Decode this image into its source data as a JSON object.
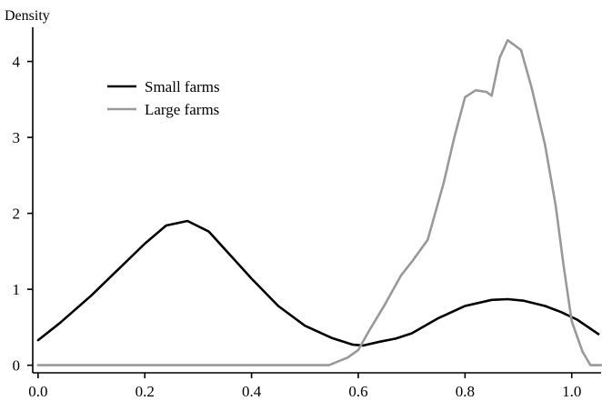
{
  "chart_data": {
    "type": "line",
    "title": "",
    "ylabel": "Density",
    "xlabel": "",
    "xlim": [
      -0.01,
      1.055
    ],
    "ylim": [
      -0.1,
      4.45
    ],
    "grid": false,
    "legend_position": "top-left",
    "x_ticks": [
      "0.0",
      "0.2",
      "0.4",
      "0.6",
      "0.8",
      "1.0"
    ],
    "y_ticks": [
      "0",
      "1",
      "2",
      "3",
      "4"
    ],
    "series": [
      {
        "name": "Small farms",
        "color": "#000000",
        "x": [
          0.0,
          0.04,
          0.1,
          0.15,
          0.2,
          0.24,
          0.28,
          0.32,
          0.36,
          0.4,
          0.45,
          0.5,
          0.55,
          0.59,
          0.61,
          0.64,
          0.67,
          0.7,
          0.75,
          0.8,
          0.85,
          0.88,
          0.91,
          0.95,
          0.98,
          1.01,
          1.05
        ],
        "y": [
          0.33,
          0.55,
          0.92,
          1.26,
          1.6,
          1.84,
          1.9,
          1.76,
          1.45,
          1.14,
          0.78,
          0.52,
          0.36,
          0.27,
          0.26,
          0.31,
          0.35,
          0.42,
          0.62,
          0.78,
          0.86,
          0.87,
          0.85,
          0.78,
          0.7,
          0.6,
          0.41
        ]
      },
      {
        "name": "Large farms",
        "color": "#999999",
        "x": [
          0.0,
          0.545,
          0.58,
          0.6,
          0.62,
          0.65,
          0.68,
          0.7,
          0.73,
          0.76,
          0.78,
          0.8,
          0.82,
          0.84,
          0.85,
          0.865,
          0.88,
          0.905,
          0.925,
          0.95,
          0.97,
          0.985,
          1.0,
          1.02,
          1.035,
          1.055
        ],
        "y": [
          0.0,
          0.0,
          0.1,
          0.2,
          0.45,
          0.8,
          1.18,
          1.36,
          1.65,
          2.4,
          3.0,
          3.53,
          3.62,
          3.6,
          3.55,
          4.05,
          4.28,
          4.15,
          3.65,
          2.9,
          2.1,
          1.3,
          0.58,
          0.18,
          0.0,
          0.0
        ]
      }
    ]
  }
}
